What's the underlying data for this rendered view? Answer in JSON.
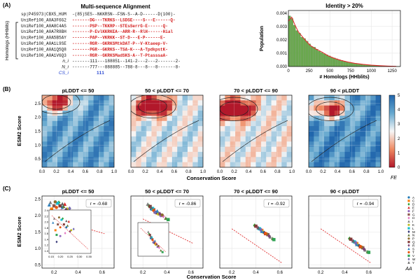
{
  "panel_labels": [
    "(A)",
    "(B)",
    "(C)"
  ],
  "msa": {
    "title": "Multi-sequence Alignment",
    "side_label": "Homologs (HHblits)",
    "rows": [
      {
        "id": "sp|P45973|CBX5_HUM",
        "seq": "-(85)SES--NKKRSN--FSN-S--A-D------D(100)-",
        "color": "#111111"
      },
      {
        "id": "UniRef100_A0A3F6G2",
        "seq": "-------DG---TKRKS--LSDSE----S---E------Q-",
        "color": "#d42020"
      },
      {
        "id": "UniRef100_A0A8C4AS",
        "seq": "-------PSP--TKKRP--STEsSerrG-E------Q-",
        "color": "#d42020"
      },
      {
        "id": "UniRef100_A0A7R8BH",
        "seq": "-------P-EvlKKRKEA--ARR-R--RlH------Hial",
        "color": "#d42020"
      },
      {
        "id": "UniRef100_A0A5B5AY",
        "seq": "-------PAP--VKRKK--ST-D---E-P------E-",
        "color": "#d42020"
      },
      {
        "id": "UniRef100_A0A1L9SE",
        "seq": "-------RGR--GKRKSMtkDAT-P--V-Ktaeep-V-",
        "color": "#d42020"
      },
      {
        "id": "UniRef100_A0A1Q5Q8",
        "seq": "-------PGR--GKRKS--TSA-K---A-TpdkpstK-",
        "color": "#d42020"
      },
      {
        "id": "UniRef100_A0A1V6Q3",
        "seq": "-------RGR--GKRKSMadSKS-A--T-PtasssaA-",
        "color": "#d42020"
      }
    ],
    "stat_rows": [
      {
        "label": "n_i",
        "seq": "-------111---188851--141-2---2---2-------2-",
        "color": "#111111"
      },
      {
        "label": "N_i",
        "seq": "-------777---888885--788-8---8---8-------8-",
        "color": "#111111"
      },
      {
        "label": "CS_i",
        "seq": "111",
        "color": "#1f3fd0"
      }
    ]
  },
  "histogram": {
    "title": "Identity > 20%",
    "xlabel": "# Homologs (HHblits)",
    "ylabel": "Population",
    "xticks": [
      0,
      250,
      500,
      750,
      1000,
      1250
    ],
    "yticks": [
      "0.000",
      "0.001",
      "0.002",
      "0.003",
      "0.004"
    ],
    "xlim": [
      0,
      1350
    ],
    "ylim": [
      0,
      0.0042
    ],
    "bar_color": "#6aa84f",
    "line_color": "#e03030"
  },
  "chart_data": [
    {
      "type": "bar",
      "title": "Identity > 20%",
      "xlabel": "# Homologs (HHblits)",
      "ylabel": "Population",
      "bin_width": 30,
      "bin_starts": [
        0,
        30,
        60,
        90,
        120,
        150,
        180,
        210,
        240,
        270,
        300,
        330,
        360,
        390,
        420,
        450,
        480,
        510,
        540,
        570,
        600,
        630,
        660,
        690,
        720,
        750,
        780,
        810,
        840,
        870,
        900,
        930,
        960,
        990,
        1020,
        1050,
        1080,
        1110,
        1140,
        1170,
        1200,
        1230,
        1260,
        1290,
        1320
      ],
      "values": [
        0.0038,
        0.0036,
        0.0031,
        0.0027,
        0.0025,
        0.0022,
        0.0021,
        0.0019,
        0.0017,
        0.0015,
        0.00145,
        0.0013,
        0.00115,
        0.00105,
        0.00095,
        0.00088,
        0.0008,
        0.0007,
        0.00065,
        0.00058,
        0.00052,
        0.00046,
        0.0004,
        0.00036,
        0.00032,
        0.00028,
        0.00025,
        0.00022,
        0.0002,
        0.00017,
        0.00015,
        0.00013,
        0.00011,
        0.0001,
        8e-05,
        7e-05,
        6e-05,
        5e-05,
        4e-05,
        3e-05,
        3e-05,
        2e-05,
        2e-05,
        1e-05,
        1e-05
      ],
      "kde": [
        [
          0,
          0.0034
        ],
        [
          40,
          0.0037
        ],
        [
          80,
          0.0031
        ],
        [
          120,
          0.0026
        ],
        [
          160,
          0.0023
        ],
        [
          200,
          0.002
        ],
        [
          260,
          0.0016
        ],
        [
          320,
          0.00135
        ],
        [
          400,
          0.0011
        ],
        [
          480,
          0.0008
        ],
        [
          560,
          0.0006
        ],
        [
          640,
          0.00045
        ],
        [
          720,
          0.00033
        ],
        [
          800,
          0.00024
        ],
        [
          900,
          0.00016
        ],
        [
          1000,
          0.0001
        ],
        [
          1100,
          6e-05
        ],
        [
          1200,
          3e-05
        ],
        [
          1300,
          1e-05
        ]
      ],
      "ylim": [
        0,
        0.0042
      ],
      "xlim": [
        0,
        1350
      ]
    },
    {
      "type": "heatmap",
      "section": "B",
      "xlabel": "Conservation Score",
      "ylabel": "ESM2 Score",
      "xlim": [
        0.0,
        1.0
      ],
      "ylim": [
        0.2,
        2.8
      ],
      "xticks": [
        "0.0",
        "0.2",
        "0.4",
        "0.6",
        "0.8",
        "1.0"
      ],
      "yticks": [
        "0.5",
        "1.0",
        "1.5",
        "2.0",
        "2.5"
      ],
      "colorbar": {
        "label": "FE",
        "min": 0,
        "max": 5,
        "ticks": [
          "0",
          "1",
          "2",
          "3",
          "4",
          "5"
        ]
      },
      "panels": [
        {
          "title": "pLDDT <= 50",
          "basin": [
            0.2,
            2.55
          ],
          "coolness": 0.8
        },
        {
          "title": "50 < pLDDT <= 70",
          "basin": [
            0.3,
            2.4
          ],
          "coolness": 0.55
        },
        {
          "title": "70 < pLDDT <= 90",
          "basin": [
            0.2,
            2.3
          ],
          "coolness": 0.5
        },
        {
          "title": "90 < pLDDT",
          "basin": [
            0.3,
            2.3
          ],
          "coolness": 0.85
        }
      ]
    },
    {
      "type": "scatter",
      "section": "C",
      "xlabel": "Conservation Score",
      "ylabel": "ESM2 Score",
      "xlim": [
        0.1,
        0.7
      ],
      "ylim": [
        0.4,
        2.6
      ],
      "xticks": [
        "0.2",
        "0.4",
        "0.6"
      ],
      "yticks": [
        "0.5",
        "1.0",
        "1.5",
        "2.0",
        "2.5"
      ],
      "legend_title": "AA",
      "amino_acids": [
        "A",
        "C",
        "D",
        "E",
        "F",
        "G",
        "H",
        "I",
        "K",
        "L",
        "M",
        "N",
        "P",
        "Q",
        "R",
        "S",
        "T",
        "V",
        "W",
        "Y"
      ],
      "panels": [
        {
          "title": "pLDDT <= 50",
          "r": "r = -0.68",
          "x": [
            0.27,
            0.18,
            0.24,
            0.29,
            0.22,
            0.2,
            0.26,
            0.17,
            0.31,
            0.23,
            0.19,
            0.28,
            0.21,
            0.25,
            0.3,
            0.16,
            0.22,
            0.19,
            0.33,
            0.27
          ],
          "y": [
            2.25,
            2.2,
            2.4,
            2.35,
            2.1,
            2.3,
            2.15,
            2.4,
            2.2,
            2.38,
            2.0,
            2.28,
            2.42,
            2.3,
            2.18,
            2.33,
            2.25,
            2.12,
            2.22,
            2.36
          ]
        },
        {
          "title": "50 < pLDDT <= 70",
          "r": "r = -0.86",
          "x": [
            0.27,
            0.32,
            0.25,
            0.3,
            0.35,
            0.29,
            0.37,
            0.24,
            0.33,
            0.28,
            0.31,
            0.39,
            0.36,
            0.26,
            0.34,
            0.32,
            0.29,
            0.41,
            0.3,
            0.27
          ],
          "y": [
            2.2,
            2.08,
            2.3,
            2.12,
            2.0,
            2.18,
            1.98,
            2.35,
            2.05,
            2.22,
            2.1,
            1.92,
            2.02,
            2.28,
            2.06,
            2.14,
            2.16,
            1.88,
            2.1,
            2.25
          ]
        },
        {
          "title": "70 < pLDDT <= 90",
          "r": "r = -0.92",
          "x": [
            0.42,
            0.45,
            0.39,
            0.48,
            0.44,
            0.5,
            0.41,
            0.52,
            0.46,
            0.43,
            0.47,
            0.54,
            0.49,
            0.4,
            0.51,
            0.45,
            0.48,
            0.55,
            0.44,
            0.42
          ],
          "y": [
            1.62,
            1.55,
            1.7,
            1.45,
            1.58,
            1.42,
            1.65,
            1.35,
            1.5,
            1.6,
            1.48,
            1.3,
            1.44,
            1.68,
            1.38,
            1.52,
            1.46,
            1.27,
            1.56,
            1.63
          ]
        },
        {
          "title": "90 < pLDDT",
          "r": "r = -0.94",
          "x": [
            0.47,
            0.5,
            0.44,
            0.53,
            0.49,
            0.55,
            0.46,
            0.57,
            0.51,
            0.48,
            0.52,
            0.59,
            0.54,
            0.45,
            0.56,
            0.5,
            0.53,
            0.6,
            0.49,
            0.47
          ],
          "y": [
            1.22,
            1.15,
            1.3,
            1.05,
            1.18,
            1.02,
            1.25,
            0.95,
            1.1,
            1.2,
            1.08,
            0.9,
            1.04,
            1.28,
            0.98,
            1.12,
            1.06,
            0.88,
            1.16,
            1.23
          ]
        }
      ],
      "inset": {
        "xticks": [
          "0.15",
          "0.20",
          "0.25",
          "0.30",
          "0.35"
        ],
        "yticks": [
          "1.0",
          "1.2",
          "1.4",
          "1.6",
          "1.8",
          "2.0",
          "2.2",
          "2.4"
        ]
      },
      "trend_color": "#e03030"
    }
  ]
}
